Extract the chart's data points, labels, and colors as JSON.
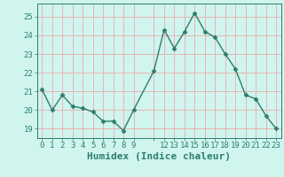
{
  "x": [
    0,
    1,
    2,
    3,
    4,
    5,
    6,
    7,
    8,
    9,
    11,
    12,
    13,
    14,
    15,
    16,
    17,
    18,
    19,
    20,
    21,
    22,
    23
  ],
  "y": [
    21.1,
    20.0,
    20.8,
    20.2,
    20.1,
    19.9,
    19.4,
    19.4,
    18.9,
    20.0,
    22.1,
    24.3,
    23.3,
    24.2,
    25.2,
    24.2,
    23.9,
    23.0,
    22.2,
    20.8,
    20.6,
    19.7,
    19.0
  ],
  "line_color": "#2e7d6e",
  "marker": "D",
  "marker_size": 2.5,
  "bg_color": "#cff5ee",
  "grid_color": "#e8b4b4",
  "xlabel": "Humidex (Indice chaleur)",
  "ylim": [
    18.5,
    25.7
  ],
  "xlim": [
    -0.5,
    23.5
  ],
  "yticks": [
    19,
    20,
    21,
    22,
    23,
    24,
    25
  ],
  "xtick_labels": [
    "0",
    "1",
    "2",
    "3",
    "4",
    "5",
    "6",
    "7",
    "8",
    "9",
    "",
    "12",
    "13",
    "14",
    "15",
    "16",
    "17",
    "18",
    "19",
    "20",
    "21",
    "22",
    "23"
  ],
  "xtick_positions": [
    0,
    1,
    2,
    3,
    4,
    5,
    6,
    7,
    8,
    9,
    11,
    12,
    13,
    14,
    15,
    16,
    17,
    18,
    19,
    20,
    21,
    22,
    23
  ],
  "tick_fontsize": 6.5,
  "xlabel_fontsize": 8
}
